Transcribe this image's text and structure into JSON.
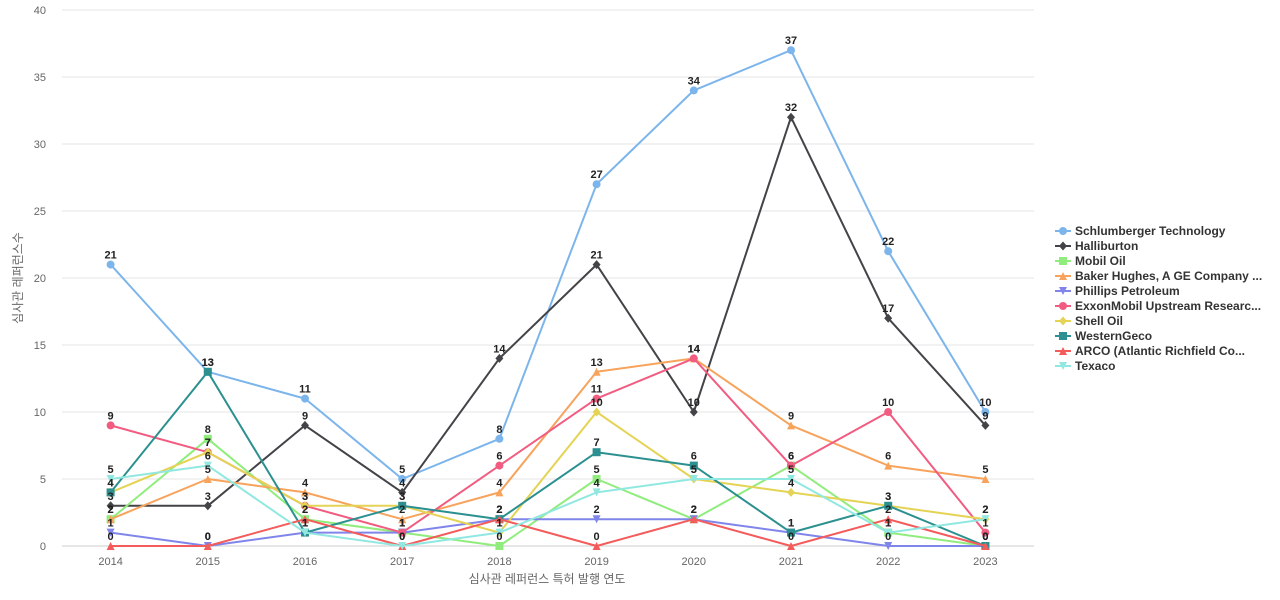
{
  "chart_data": {
    "type": "line",
    "title": "",
    "xlabel": "심사관 레퍼런스 특허 발행 연도",
    "ylabel": "심사관 레퍼런스수",
    "x": [
      "2014",
      "2015",
      "2016",
      "2017",
      "2018",
      "2019",
      "2020",
      "2021",
      "2022",
      "2023"
    ],
    "y_ticks": [
      "0",
      "5",
      "10",
      "15",
      "20",
      "25",
      "30",
      "35",
      "40"
    ],
    "ylim": [
      0,
      40
    ],
    "grid": true,
    "legend_position": "right",
    "series": [
      {
        "name": "Schlumberger Technology",
        "color": "#7cb5ec",
        "marker": "circle",
        "values": [
          21,
          13,
          11,
          5,
          8,
          27,
          34,
          37,
          22,
          10
        ]
      },
      {
        "name": "Halliburton",
        "color": "#434348",
        "marker": "diamond",
        "values": [
          3,
          3,
          9,
          4,
          14,
          21,
          10,
          32,
          17,
          9
        ]
      },
      {
        "name": "Mobil Oil",
        "color": "#90ed7d",
        "marker": "square",
        "values": [
          2,
          8,
          2,
          1,
          0,
          5,
          2,
          6,
          1,
          0
        ]
      },
      {
        "name": "Baker Hughes, A GE Company ...",
        "color": "#f7a35c",
        "marker": "triangle",
        "values": [
          2,
          5,
          4,
          2,
          4,
          13,
          14,
          9,
          6,
          5
        ]
      },
      {
        "name": "Phillips Petroleum",
        "color": "#8085e9",
        "marker": "triangle-down",
        "values": [
          1,
          0,
          1,
          1,
          2,
          2,
          2,
          1,
          0,
          0
        ]
      },
      {
        "name": "ExxonMobil Upstream Researc...",
        "color": "#f15c80",
        "marker": "circle",
        "values": [
          9,
          7,
          3,
          1,
          6,
          11,
          14,
          6,
          10,
          1
        ]
      },
      {
        "name": "Shell Oil",
        "color": "#e4d354",
        "marker": "diamond",
        "values": [
          4,
          7,
          3,
          3,
          1,
          10,
          5,
          4,
          3,
          2
        ]
      },
      {
        "name": "WesternGeco",
        "color": "#2b908f",
        "marker": "square",
        "values": [
          4,
          13,
          1,
          3,
          2,
          7,
          6,
          1,
          3,
          0
        ]
      },
      {
        "name": "ARCO (Atlantic Richfield Co...",
        "color": "#f45b5b",
        "marker": "triangle",
        "values": [
          0,
          0,
          2,
          0,
          2,
          0,
          2,
          0,
          2,
          0
        ]
      },
      {
        "name": "Texaco",
        "color": "#91e8e1",
        "marker": "triangle-down",
        "values": [
          5,
          6,
          1,
          0,
          1,
          4,
          5,
          5,
          1,
          2
        ]
      }
    ]
  }
}
